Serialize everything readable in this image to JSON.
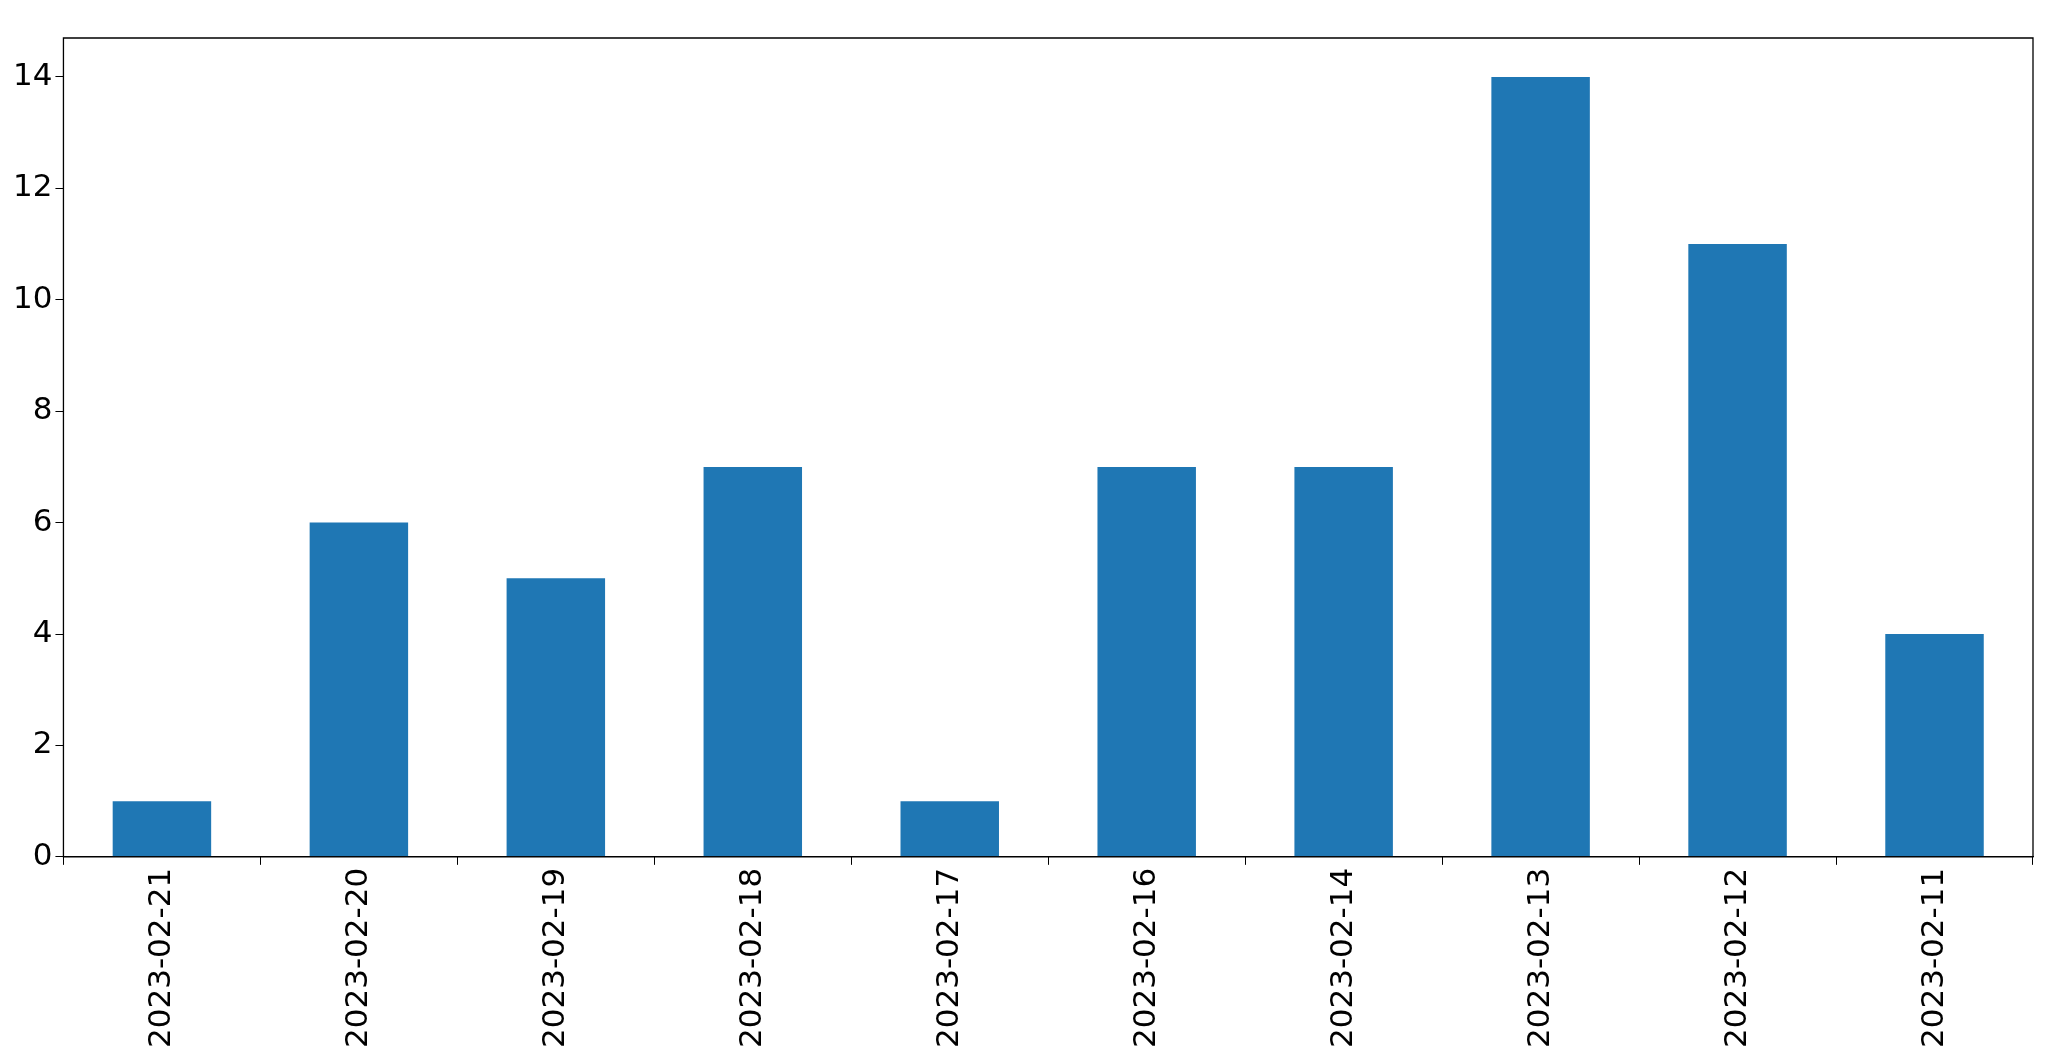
{
  "chart_data": {
    "type": "bar",
    "categories": [
      "2023-02-21",
      "2023-02-20",
      "2023-02-19",
      "2023-02-18",
      "2023-02-17",
      "2023-02-16",
      "2023-02-14",
      "2023-02-13",
      "2023-02-12",
      "2023-02-11"
    ],
    "values": [
      1,
      6,
      5,
      7,
      1,
      7,
      7,
      14,
      11,
      4
    ],
    "color": "#1f77b4",
    "ylim": [
      0,
      14.7
    ],
    "yticks": [
      0,
      2,
      4,
      6,
      8,
      10,
      12,
      14
    ],
    "grid": false,
    "legend": false
  }
}
